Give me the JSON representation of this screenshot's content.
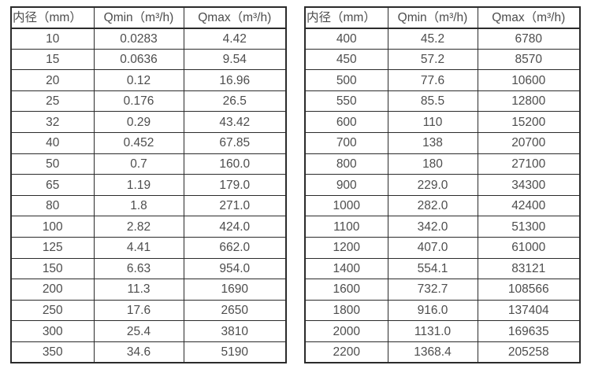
{
  "page": {
    "background_color": "#ffffff",
    "border_color": "#2b2b2b",
    "text_color": "#4d4d4d"
  },
  "tables": [
    {
      "name": "flow-table-small-diameters",
      "headers": [
        "内径（mm）",
        "Qmin（m³/h)",
        "Qmax（m³/h)"
      ],
      "rows": [
        [
          "10",
          "0.0283",
          "4.42"
        ],
        [
          "15",
          "0.0636",
          "9.54"
        ],
        [
          "20",
          "0.12",
          "16.96"
        ],
        [
          "25",
          "0.176",
          "26.5"
        ],
        [
          "32",
          "0.29",
          "43.42"
        ],
        [
          "40",
          "0.452",
          "67.85"
        ],
        [
          "50",
          "0.7",
          "160.0"
        ],
        [
          "65",
          "1.19",
          "179.0"
        ],
        [
          "80",
          "1.8",
          "271.0"
        ],
        [
          "100",
          "2.82",
          "424.0"
        ],
        [
          "125",
          "4.41",
          "662.0"
        ],
        [
          "150",
          "6.63",
          "954.0"
        ],
        [
          "200",
          "11.3",
          "1690"
        ],
        [
          "250",
          "17.6",
          "2650"
        ],
        [
          "300",
          "25.4",
          "3810"
        ],
        [
          "350",
          "34.6",
          "5190"
        ]
      ]
    },
    {
      "name": "flow-table-large-diameters",
      "headers": [
        "内径（mm）",
        "Qmin（m³/h)",
        "Qmax（m³/h)"
      ],
      "rows": [
        [
          "400",
          "45.2",
          "6780"
        ],
        [
          "450",
          "57.2",
          "8570"
        ],
        [
          "500",
          "77.6",
          "10600"
        ],
        [
          "550",
          "85.5",
          "12800"
        ],
        [
          "600",
          "110",
          "15200"
        ],
        [
          "700",
          "138",
          "20700"
        ],
        [
          "800",
          "180",
          "27100"
        ],
        [
          "900",
          "229.0",
          "34300"
        ],
        [
          "1000",
          "282.0",
          "42400"
        ],
        [
          "1100",
          "342.0",
          "51300"
        ],
        [
          "1200",
          "407.0",
          "61000"
        ],
        [
          "1400",
          "554.1",
          "83121"
        ],
        [
          "1600",
          "732.7",
          "108566"
        ],
        [
          "1800",
          "916.0",
          "137404"
        ],
        [
          "2000",
          "1131.0",
          "169635"
        ],
        [
          "2200",
          "1368.4",
          "205258"
        ]
      ]
    }
  ]
}
